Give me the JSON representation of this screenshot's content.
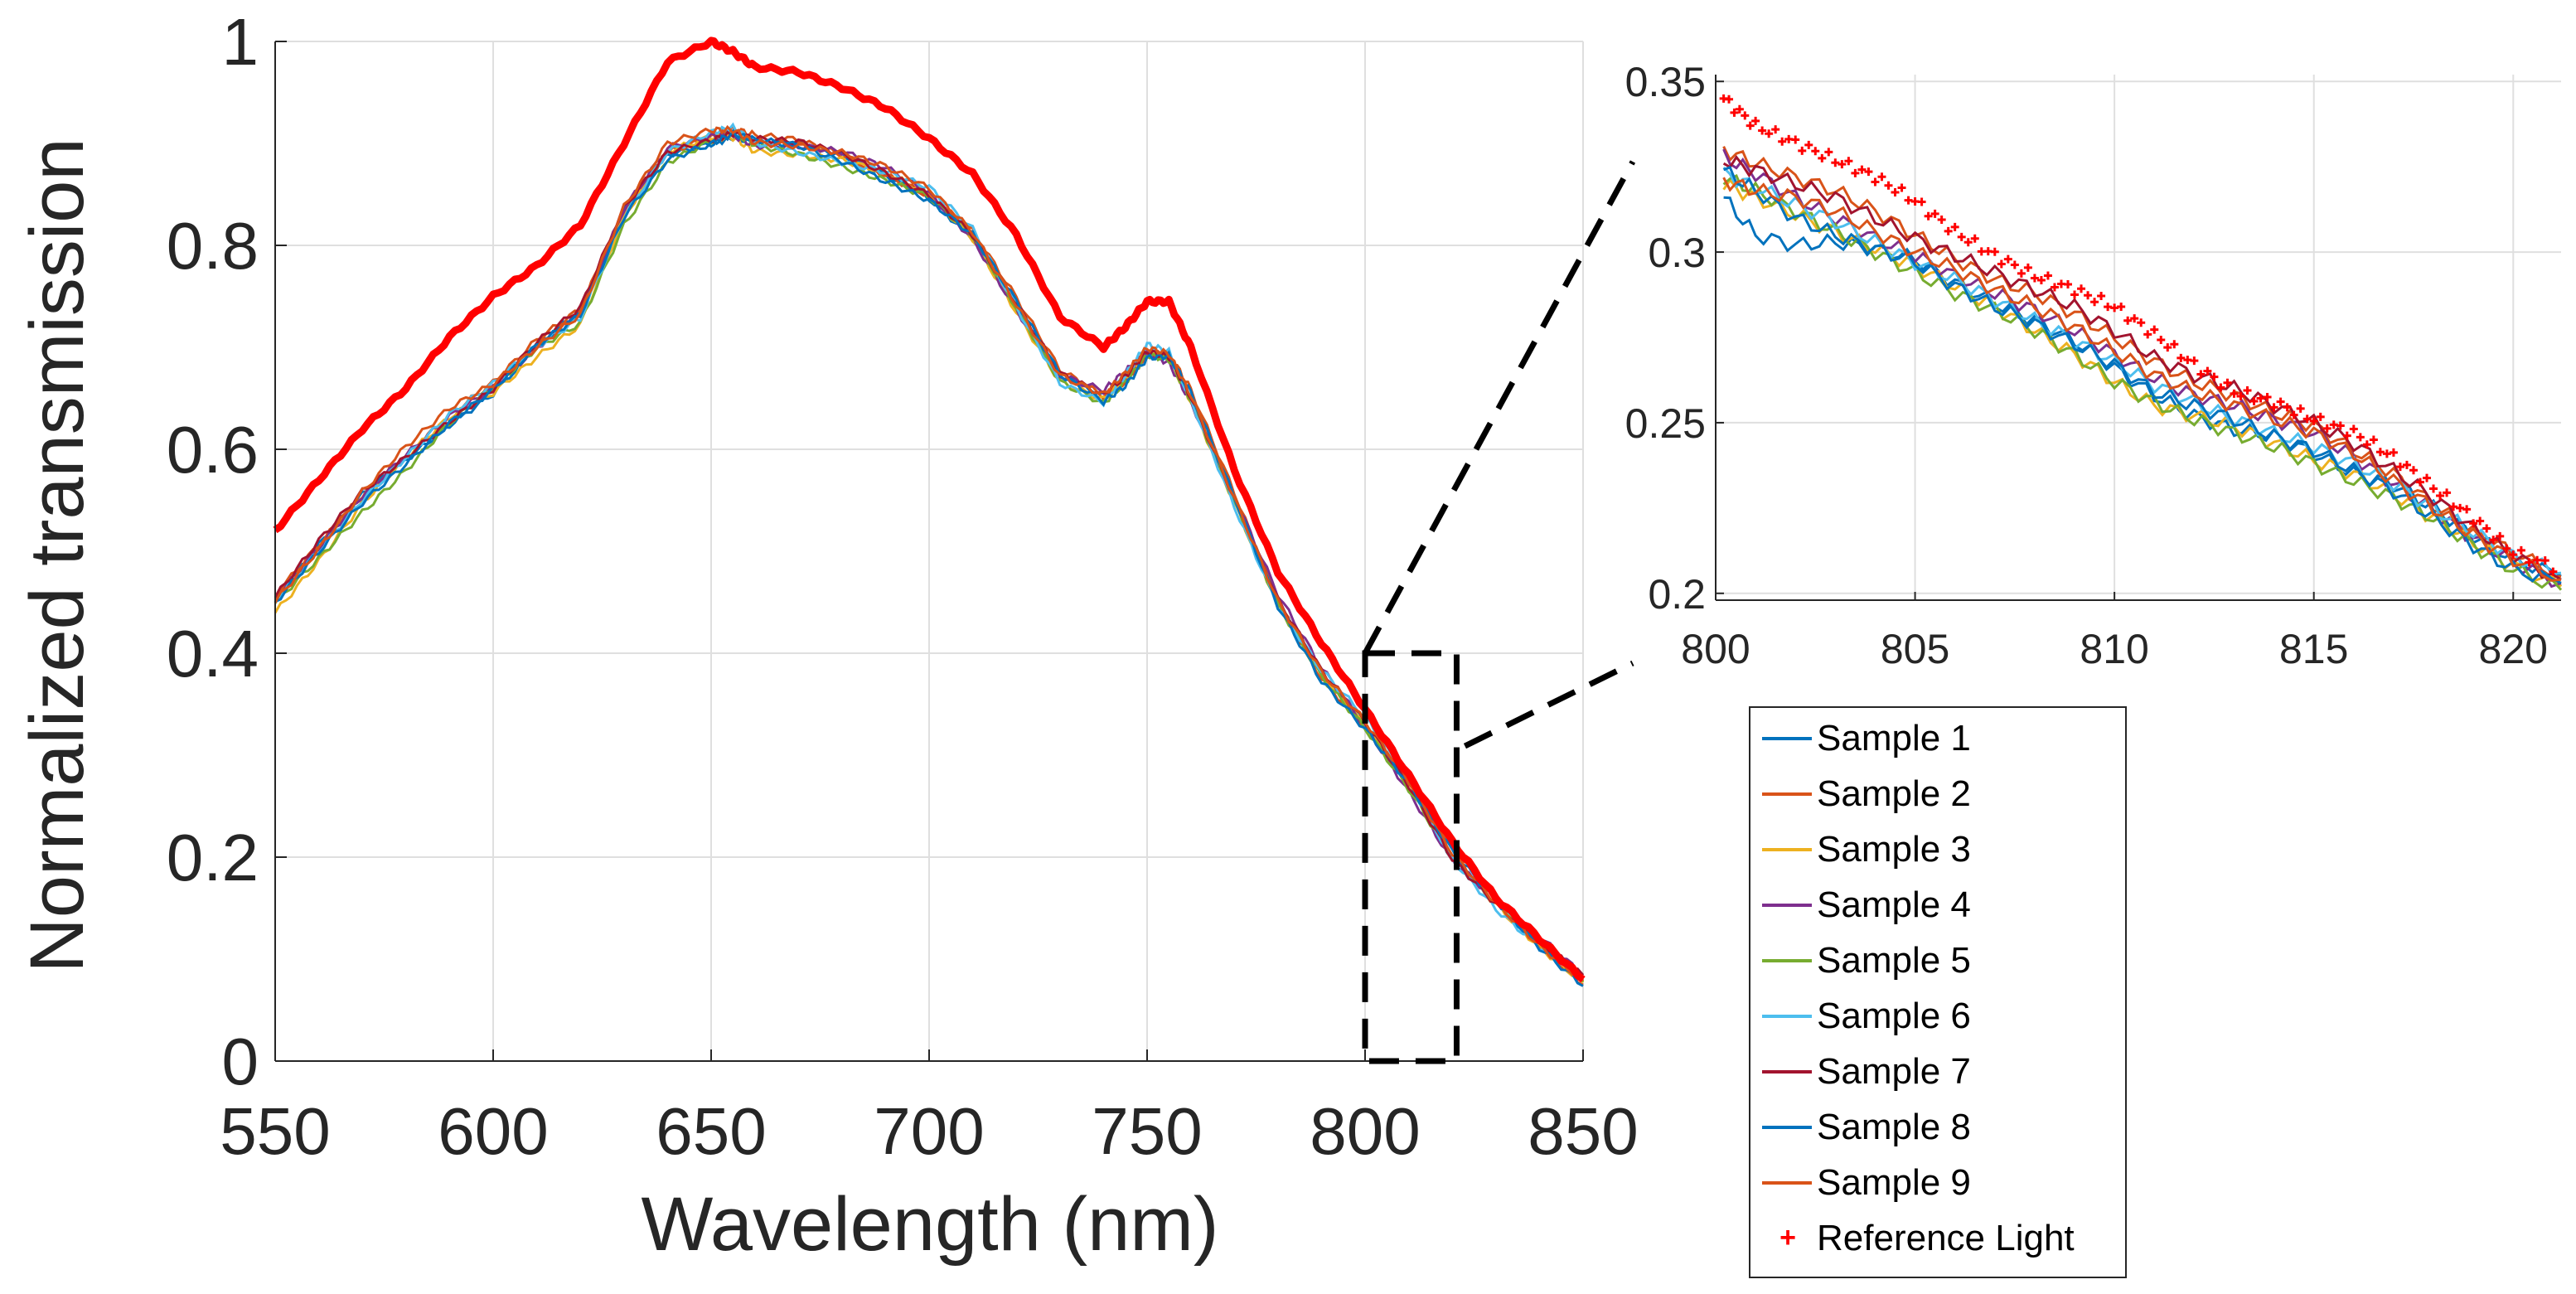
{
  "chart_data": [
    {
      "type": "line",
      "title": "",
      "xlabel": "Wavelength (nm)",
      "ylabel": "Normalized transmission",
      "xlim": [
        550,
        850
      ],
      "ylim": [
        0,
        1
      ],
      "xticks": [
        "550",
        "600",
        "650",
        "700",
        "750",
        "800",
        "850"
      ],
      "yticks": [
        "0",
        "0.2",
        "0.4",
        "0.6",
        "0.8",
        "1"
      ],
      "grid": true,
      "zoom_box": {
        "x_range": [
          800,
          821
        ],
        "y_range": [
          0,
          0.4
        ]
      },
      "reference": {
        "name": "Reference Light",
        "x": [
          550,
          560,
          570,
          580,
          590,
          600,
          610,
          620,
          630,
          640,
          650,
          655,
          660,
          670,
          680,
          690,
          700,
          710,
          720,
          730,
          740,
          745,
          750,
          755,
          760,
          770,
          780,
          790,
          800,
          810,
          820,
          830,
          840,
          850
        ],
        "y": [
          0.52,
          0.57,
          0.62,
          0.66,
          0.71,
          0.75,
          0.78,
          0.82,
          0.9,
          0.98,
          1.0,
          0.99,
          0.975,
          0.97,
          0.955,
          0.935,
          0.905,
          0.87,
          0.81,
          0.73,
          0.7,
          0.72,
          0.745,
          0.745,
          0.7,
          0.58,
          0.48,
          0.41,
          0.345,
          0.28,
          0.215,
          0.16,
          0.12,
          0.08
        ]
      },
      "samples": {
        "x": [
          550,
          560,
          570,
          580,
          590,
          600,
          610,
          620,
          630,
          640,
          650,
          655,
          660,
          670,
          680,
          690,
          700,
          710,
          720,
          730,
          740,
          745,
          750,
          755,
          760,
          770,
          780,
          790,
          800,
          810,
          820,
          830,
          840,
          850
        ],
        "base_y": [
          0.45,
          0.5,
          0.55,
          0.59,
          0.63,
          0.66,
          0.7,
          0.73,
          0.83,
          0.89,
          0.905,
          0.91,
          0.9,
          0.895,
          0.885,
          0.87,
          0.85,
          0.81,
          0.74,
          0.67,
          0.65,
          0.67,
          0.695,
          0.69,
          0.65,
          0.55,
          0.45,
          0.38,
          0.33,
          0.27,
          0.2,
          0.155,
          0.115,
          0.08
        ],
        "offsets": [
          0.0,
          0.006,
          -0.004,
          0.003,
          -0.006,
          0.002,
          0.004,
          -0.002,
          0.007
        ]
      }
    },
    {
      "type": "line",
      "title": "",
      "xlabel": "",
      "ylabel": "",
      "xlim": [
        800,
        821.2
      ],
      "ylim": [
        0.198,
        0.352
      ],
      "xticks": [
        "800",
        "805",
        "810",
        "815",
        "820"
      ],
      "yticks": [
        "0.2",
        "0.25",
        "0.3",
        "0.35"
      ],
      "grid": true,
      "series": [
        {
          "name": "Sample 1",
          "color": "#0072bd",
          "x": [
            800.2,
            801,
            802,
            803,
            804,
            805,
            806,
            807,
            808,
            809,
            810,
            811,
            812,
            813,
            814,
            815,
            816,
            817,
            818,
            819,
            820,
            821.2
          ],
          "y": [
            0.316,
            0.305,
            0.302,
            0.303,
            0.301,
            0.298,
            0.291,
            0.285,
            0.28,
            0.274,
            0.266,
            0.258,
            0.252,
            0.248,
            0.246,
            0.241,
            0.235,
            0.232,
            0.225,
            0.217,
            0.21,
            0.205
          ]
        },
        {
          "name": "Sample 2",
          "color": "#d95319",
          "x": [
            800.2,
            801,
            802,
            803,
            804,
            805,
            806,
            807,
            808,
            809,
            810,
            811,
            812,
            813,
            814,
            815,
            816,
            817,
            818,
            819,
            820,
            821.2
          ],
          "y": [
            0.33,
            0.326,
            0.322,
            0.318,
            0.312,
            0.305,
            0.298,
            0.292,
            0.288,
            0.282,
            0.275,
            0.268,
            0.262,
            0.258,
            0.253,
            0.249,
            0.242,
            0.235,
            0.226,
            0.218,
            0.212,
            0.205
          ]
        },
        {
          "name": "Sample 3",
          "color": "#edb120",
          "x": [
            800.2,
            801,
            802,
            803,
            804,
            805,
            806,
            807,
            808,
            809,
            810,
            811,
            812,
            813,
            814,
            815,
            816,
            817,
            818,
            819,
            820,
            821.2
          ],
          "y": [
            0.32,
            0.316,
            0.311,
            0.306,
            0.301,
            0.296,
            0.29,
            0.284,
            0.277,
            0.27,
            0.262,
            0.255,
            0.252,
            0.249,
            0.244,
            0.239,
            0.235,
            0.229,
            0.222,
            0.215,
            0.208,
            0.202
          ]
        },
        {
          "name": "Sample 4",
          "color": "#7e2f8e",
          "x": [
            800.2,
            801,
            802,
            803,
            804,
            805,
            806,
            807,
            808,
            809,
            810,
            811,
            812,
            813,
            814,
            815,
            816,
            817,
            818,
            819,
            820,
            821.2
          ],
          "y": [
            0.328,
            0.323,
            0.316,
            0.31,
            0.304,
            0.299,
            0.293,
            0.288,
            0.283,
            0.277,
            0.27,
            0.263,
            0.258,
            0.255,
            0.251,
            0.247,
            0.24,
            0.232,
            0.224,
            0.216,
            0.209,
            0.203
          ]
        },
        {
          "name": "Sample 5",
          "color": "#77ac30",
          "x": [
            800.2,
            801,
            802,
            803,
            804,
            805,
            806,
            807,
            808,
            809,
            810,
            811,
            812,
            813,
            814,
            815,
            816,
            817,
            818,
            819,
            820,
            821.2
          ],
          "y": [
            0.322,
            0.318,
            0.312,
            0.306,
            0.3,
            0.294,
            0.288,
            0.283,
            0.277,
            0.27,
            0.262,
            0.256,
            0.251,
            0.247,
            0.243,
            0.238,
            0.233,
            0.228,
            0.222,
            0.214,
            0.207,
            0.201
          ]
        },
        {
          "name": "Sample 6",
          "color": "#4dbeee",
          "x": [
            800.2,
            801,
            802,
            803,
            804,
            805,
            806,
            807,
            808,
            809,
            810,
            811,
            812,
            813,
            814,
            815,
            816,
            817,
            818,
            819,
            820,
            821.2
          ],
          "y": [
            0.323,
            0.319,
            0.314,
            0.309,
            0.303,
            0.297,
            0.292,
            0.286,
            0.28,
            0.274,
            0.268,
            0.261,
            0.256,
            0.251,
            0.247,
            0.243,
            0.238,
            0.232,
            0.225,
            0.218,
            0.211,
            0.206
          ]
        },
        {
          "name": "Sample 7",
          "color": "#a2142f",
          "x": [
            800.2,
            801,
            802,
            803,
            804,
            805,
            806,
            807,
            808,
            809,
            810,
            811,
            812,
            813,
            814,
            815,
            816,
            817,
            818,
            819,
            820,
            821.2
          ],
          "y": [
            0.327,
            0.324,
            0.32,
            0.316,
            0.31,
            0.304,
            0.299,
            0.294,
            0.289,
            0.284,
            0.277,
            0.269,
            0.264,
            0.26,
            0.255,
            0.25,
            0.244,
            0.236,
            0.228,
            0.219,
            0.211,
            0.204
          ]
        },
        {
          "name": "Sample 8",
          "color": "#0072bd",
          "x": [
            800.2,
            801,
            802,
            803,
            804,
            805,
            806,
            807,
            808,
            809,
            810,
            811,
            812,
            813,
            814,
            815,
            816,
            817,
            818,
            819,
            820,
            821.2
          ],
          "y": [
            0.324,
            0.318,
            0.31,
            0.305,
            0.301,
            0.297,
            0.29,
            0.284,
            0.279,
            0.273,
            0.267,
            0.259,
            0.255,
            0.251,
            0.246,
            0.242,
            0.236,
            0.23,
            0.222,
            0.214,
            0.207,
            0.203
          ]
        },
        {
          "name": "Sample 9",
          "color": "#d95319",
          "x": [
            800.2,
            801,
            802,
            803,
            804,
            805,
            806,
            807,
            808,
            809,
            810,
            811,
            812,
            813,
            814,
            815,
            816,
            817,
            818,
            819,
            820,
            821.2
          ],
          "y": [
            0.321,
            0.318,
            0.316,
            0.312,
            0.306,
            0.3,
            0.295,
            0.289,
            0.284,
            0.278,
            0.271,
            0.264,
            0.259,
            0.255,
            0.251,
            0.247,
            0.241,
            0.233,
            0.225,
            0.217,
            0.21,
            0.204
          ]
        },
        {
          "name": "Reference Light",
          "color": "#ff0000",
          "marker": "+",
          "x": [
            800.2,
            801,
            802,
            803,
            804,
            805,
            806,
            807,
            808,
            809,
            810,
            811,
            812,
            813,
            814,
            815,
            816,
            817,
            818,
            819,
            820,
            821.2
          ],
          "y": [
            0.345,
            0.337,
            0.332,
            0.327,
            0.322,
            0.315,
            0.306,
            0.299,
            0.293,
            0.289,
            0.284,
            0.276,
            0.267,
            0.259,
            0.256,
            0.251,
            0.247,
            0.24,
            0.231,
            0.222,
            0.212,
            0.207
          ]
        }
      ]
    }
  ],
  "legend": {
    "placement": "bottom-right",
    "entries": [
      {
        "label": "Sample 1",
        "color": "#0072bd",
        "kind": "line"
      },
      {
        "label": "Sample 2",
        "color": "#d95319",
        "kind": "line"
      },
      {
        "label": "Sample 3",
        "color": "#edb120",
        "kind": "line"
      },
      {
        "label": "Sample 4",
        "color": "#7e2f8e",
        "kind": "line"
      },
      {
        "label": "Sample 5",
        "color": "#77ac30",
        "kind": "line"
      },
      {
        "label": "Sample 6",
        "color": "#4dbeee",
        "kind": "line"
      },
      {
        "label": "Sample 7",
        "color": "#a2142f",
        "kind": "line"
      },
      {
        "label": "Sample 8",
        "color": "#0072bd",
        "kind": "line"
      },
      {
        "label": "Sample 9",
        "color": "#d95319",
        "kind": "line"
      },
      {
        "label": "Reference Light",
        "color": "#ff0000",
        "kind": "marker",
        "marker_symbol": "+"
      }
    ]
  }
}
